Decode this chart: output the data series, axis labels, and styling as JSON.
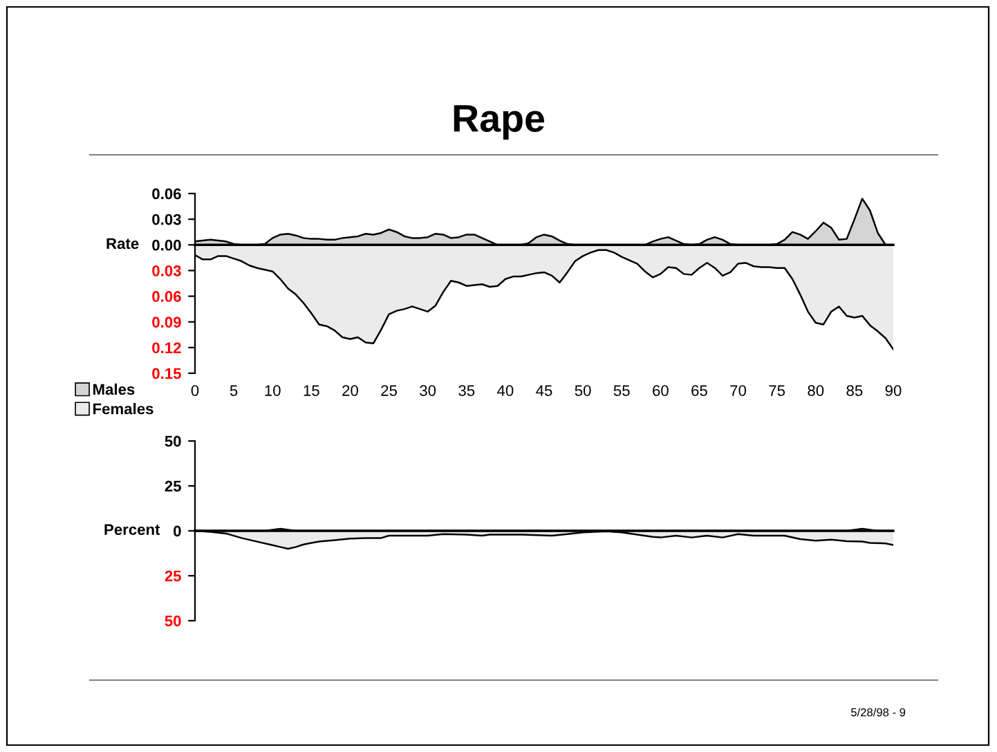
{
  "chart_data": [
    {
      "type": "area",
      "title": "Rape",
      "ylabel": "Rate",
      "xlim": [
        0,
        90
      ],
      "xticks": [
        0,
        5,
        10,
        15,
        20,
        25,
        30,
        35,
        40,
        45,
        50,
        55,
        60,
        65,
        70,
        75,
        80,
        85,
        90
      ],
      "ylim": [
        -0.15,
        0.06
      ],
      "yticks": [
        {
          "value": 0.06,
          "label": "0.06"
        },
        {
          "value": 0.03,
          "label": "0.03"
        },
        {
          "value": 0,
          "label": "0.00"
        },
        {
          "value": -0.03,
          "label": "0.03"
        },
        {
          "value": -0.06,
          "label": "0.06"
        },
        {
          "value": -0.09,
          "label": "0.09"
        },
        {
          "value": -0.12,
          "label": "0.12"
        },
        {
          "value": -0.15,
          "label": "0.15"
        }
      ],
      "legend": "bottom left",
      "series": [
        {
          "name": "Males",
          "color": "#d4d4d4",
          "x": [
            0,
            1,
            2,
            3,
            4,
            5,
            6,
            7,
            8,
            9,
            10,
            11,
            12,
            13,
            14,
            15,
            16,
            17,
            18,
            19,
            20,
            21,
            22,
            23,
            24,
            25,
            26,
            27,
            28,
            29,
            30,
            31,
            32,
            33,
            34,
            35,
            36,
            37,
            38,
            39,
            40,
            41,
            42,
            43,
            44,
            45,
            46,
            47,
            48,
            49,
            58,
            59,
            60,
            61,
            62,
            63,
            64,
            65,
            66,
            67,
            68,
            69,
            70,
            74,
            75,
            76,
            77,
            78,
            79,
            80,
            81,
            82,
            83,
            84,
            85,
            86,
            87,
            88,
            89,
            90
          ],
          "values": [
            0.004,
            0.005,
            0.006,
            0.005,
            0.004,
            0.001,
            0,
            0,
            0,
            0.001,
            0.008,
            0.012,
            0.013,
            0.011,
            0.008,
            0.007,
            0.007,
            0.006,
            0.006,
            0.008,
            0.009,
            0.01,
            0.013,
            0.012,
            0.014,
            0.018,
            0.015,
            0.01,
            0.008,
            0.008,
            0.009,
            0.013,
            0.012,
            0.008,
            0.009,
            0.012,
            0.012,
            0.008,
            0.004,
            0,
            0,
            0,
            0,
            0.002,
            0.009,
            0.012,
            0.01,
            0.005,
            0.001,
            0,
            0,
            0.004,
            0.007,
            0.009,
            0.005,
            0.001,
            0,
            0.001,
            0.006,
            0.009,
            0.006,
            0.001,
            0,
            0,
            0.001,
            0.006,
            0.015,
            0.012,
            0.007,
            0.016,
            0.026,
            0.02,
            0.006,
            0.007,
            0.03,
            0.054,
            0.04,
            0.014,
            0,
            0
          ]
        },
        {
          "name": "Females",
          "color": "#ebebeb",
          "x": [
            0,
            1,
            2,
            3,
            4,
            5,
            6,
            7,
            8,
            9,
            10,
            11,
            12,
            13,
            14,
            15,
            16,
            17,
            18,
            19,
            20,
            21,
            22,
            23,
            24,
            25,
            26,
            27,
            28,
            29,
            30,
            31,
            32,
            33,
            34,
            35,
            36,
            37,
            38,
            39,
            40,
            41,
            42,
            43,
            44,
            45,
            46,
            47,
            48,
            49,
            50,
            51,
            52,
            53,
            54,
            55,
            56,
            57,
            58,
            59,
            60,
            61,
            62,
            63,
            64,
            65,
            66,
            67,
            68,
            69,
            70,
            71,
            72,
            73,
            74,
            75,
            76,
            77,
            78,
            79,
            80,
            81,
            82,
            83,
            84,
            85,
            86,
            87,
            88,
            89,
            90
          ],
          "values": [
            -0.012,
            -0.017,
            -0.017,
            -0.013,
            -0.013,
            -0.016,
            -0.019,
            -0.024,
            -0.027,
            -0.029,
            -0.031,
            -0.04,
            -0.051,
            -0.058,
            -0.068,
            -0.08,
            -0.093,
            -0.095,
            -0.1,
            -0.108,
            -0.11,
            -0.108,
            -0.114,
            -0.115,
            -0.099,
            -0.081,
            -0.077,
            -0.075,
            -0.072,
            -0.075,
            -0.078,
            -0.071,
            -0.055,
            -0.042,
            -0.044,
            -0.048,
            -0.047,
            -0.046,
            -0.049,
            -0.048,
            -0.04,
            -0.037,
            -0.037,
            -0.035,
            -0.033,
            -0.032,
            -0.036,
            -0.044,
            -0.032,
            -0.019,
            -0.013,
            -0.009,
            -0.006,
            -0.006,
            -0.009,
            -0.014,
            -0.018,
            -0.022,
            -0.031,
            -0.038,
            -0.034,
            -0.026,
            -0.027,
            -0.034,
            -0.035,
            -0.027,
            -0.021,
            -0.027,
            -0.036,
            -0.032,
            -0.022,
            -0.021,
            -0.025,
            -0.026,
            -0.026,
            -0.027,
            -0.027,
            -0.04,
            -0.058,
            -0.078,
            -0.091,
            -0.093,
            -0.078,
            -0.072,
            -0.083,
            -0.085,
            -0.083,
            -0.094,
            -0.101,
            -0.109,
            -0.122
          ]
        }
      ]
    },
    {
      "type": "area",
      "ylabel": "Percent",
      "xlim": [
        0,
        90
      ],
      "tick_labels": "y",
      "annotations": [
        "5/28/98 - 9"
      ],
      "ylim": [
        -50,
        50
      ],
      "yticks": [
        50,
        25,
        0,
        {
          "value": -25,
          "label": "25"
        },
        {
          "value": -50,
          "label": "50"
        }
      ],
      "series": [
        {
          "color": "#d4d4d4",
          "x": [
            0,
            9,
            11,
            13,
            84,
            86,
            88,
            90
          ],
          "values": [
            0,
            0,
            1.2,
            0,
            0,
            1.2,
            0,
            0
          ]
        },
        {
          "color": "#ebebeb",
          "x": [
            0,
            2,
            4,
            6,
            8,
            10,
            11,
            12,
            13,
            14,
            15,
            16,
            18,
            20,
            22,
            24,
            25,
            30,
            32,
            35,
            37,
            38,
            42,
            46,
            48,
            50,
            53,
            55,
            57,
            59,
            60,
            62,
            64,
            66,
            68,
            70,
            72,
            76,
            78,
            80,
            82,
            84,
            86,
            87,
            89,
            90
          ],
          "values": [
            0,
            -0.6,
            -1.5,
            -4,
            -6,
            -8,
            -9,
            -10,
            -9,
            -7.6,
            -6.7,
            -6,
            -5.2,
            -4.3,
            -4,
            -4,
            -2.7,
            -2.7,
            -1.8,
            -2.1,
            -2.7,
            -2.1,
            -2.1,
            -2.7,
            -1.8,
            -0.9,
            -0.3,
            -0.9,
            -2.1,
            -3.4,
            -3.7,
            -2.7,
            -3.7,
            -2.7,
            -3.7,
            -1.8,
            -2.7,
            -2.7,
            -4.6,
            -5.5,
            -4.9,
            -5.8,
            -6,
            -6.7,
            -7,
            -7.9
          ]
        }
      ]
    }
  ]
}
